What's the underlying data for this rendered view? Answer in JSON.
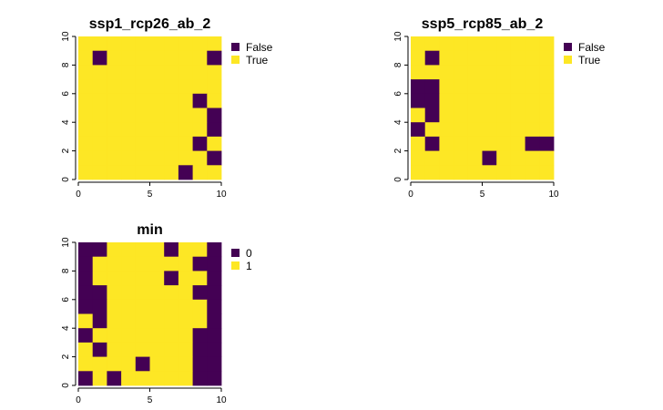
{
  "chart_data": [
    {
      "type": "heatmap",
      "title": "ssp1_rcp26_ab_2",
      "xlim": [
        0,
        10
      ],
      "ylim": [
        0,
        10
      ],
      "x_ticks": [
        "0",
        "5",
        "10"
      ],
      "y_ticks": [
        "0",
        "2",
        "4",
        "6",
        "8",
        "10"
      ],
      "legend": [
        {
          "label": "False",
          "color": "#440154"
        },
        {
          "label": "True",
          "color": "#FDE725"
        }
      ],
      "legend_placement": "right",
      "grid_rows_top_to_bottom": [
        "1111111111",
        "1011111110",
        "1111111111",
        "1111111111",
        "1111111101",
        "1111111110",
        "1111111110",
        "1111111101",
        "1111111110",
        "1111111011"
      ]
    },
    {
      "type": "heatmap",
      "title": "ssp5_rcp85_ab_2",
      "xlim": [
        0,
        10
      ],
      "ylim": [
        0,
        10
      ],
      "x_ticks": [
        "0",
        "5",
        "10"
      ],
      "y_ticks": [
        "0",
        "2",
        "4",
        "6",
        "8",
        "10"
      ],
      "legend": [
        {
          "label": "False",
          "color": "#440154"
        },
        {
          "label": "True",
          "color": "#FDE725"
        }
      ],
      "legend_placement": "right",
      "grid_rows_top_to_bottom": [
        "1111111111",
        "1011111111",
        "1111111111",
        "0011111111",
        "0011111111",
        "1011111111",
        "0111111111",
        "1011111100",
        "1111101111",
        "1111111111"
      ]
    },
    {
      "type": "heatmap",
      "title": "min",
      "xlim": [
        0,
        10
      ],
      "ylim": [
        0,
        10
      ],
      "x_ticks": [
        "0",
        "5",
        "10"
      ],
      "y_ticks": [
        "0",
        "2",
        "4",
        "6",
        "8",
        "10"
      ],
      "legend": [
        {
          "label": "0",
          "color": "#440154"
        },
        {
          "label": "1",
          "color": "#FDE725"
        }
      ],
      "legend_placement": "right",
      "grid_rows_top_to_bottom": [
        "0011110110",
        "0111111100",
        "0111110110",
        "0011111100",
        "0011111110",
        "1011111110",
        "0111111100",
        "1011111100",
        "1111011100",
        "0101111100"
      ]
    }
  ]
}
